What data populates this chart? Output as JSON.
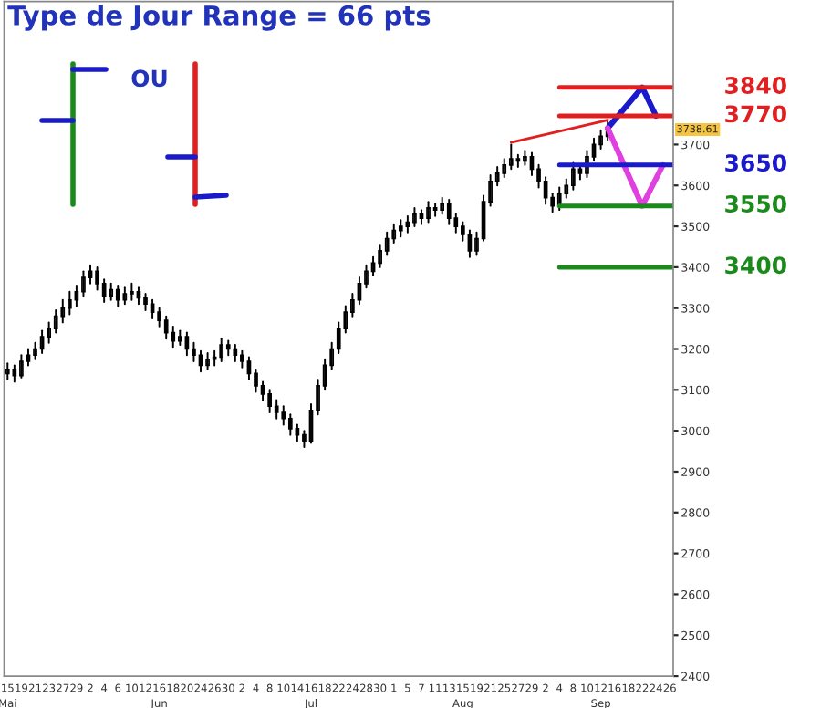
{
  "chart_data": {
    "type": "candlestick",
    "title": "Type de Jour Range = 66 pts",
    "annotations": [
      "OU",
      "3738.61"
    ],
    "categories": [
      "15\nMai",
      null,
      "19",
      null,
      "21",
      null,
      "23",
      null,
      "27",
      null,
      "29",
      null,
      "2",
      null,
      "4",
      null,
      "6",
      null,
      "10",
      null,
      "12",
      null,
      "16\nJun",
      null,
      "18",
      null,
      "20",
      null,
      "24",
      null,
      "26",
      null,
      "30",
      null,
      "2",
      null,
      "4",
      null,
      "8",
      null,
      "10",
      null,
      "14",
      null,
      "16\nJul",
      null,
      "18",
      null,
      "22",
      null,
      "24",
      null,
      "28",
      null,
      "30",
      null,
      "1",
      null,
      "5",
      null,
      "7",
      null,
      "11",
      null,
      "13",
      null,
      "15\nAug",
      null,
      "19",
      null,
      "21",
      null,
      "25",
      null,
      "27",
      null,
      "29",
      null,
      "2",
      null,
      "4",
      null,
      "8",
      null,
      "10",
      null,
      "12\nSep",
      null,
      "16",
      null,
      "18",
      null,
      "22",
      null,
      "24",
      null,
      "26"
    ],
    "color": "#000000",
    "ohlc": [
      [
        3140,
        3165,
        3125,
        3150
      ],
      [
        3150,
        3160,
        3120,
        3135
      ],
      [
        3135,
        3185,
        3130,
        3170
      ],
      [
        3170,
        3200,
        3160,
        3185
      ],
      [
        3185,
        3215,
        3175,
        3200
      ],
      [
        3200,
        3245,
        3190,
        3230
      ],
      [
        3230,
        3265,
        3215,
        3250
      ],
      [
        3250,
        3295,
        3240,
        3280
      ],
      [
        3280,
        3320,
        3265,
        3300
      ],
      [
        3300,
        3340,
        3285,
        3320
      ],
      [
        3320,
        3355,
        3305,
        3340
      ],
      [
        3340,
        3390,
        3330,
        3375
      ],
      [
        3375,
        3405,
        3360,
        3390
      ],
      [
        3390,
        3400,
        3345,
        3360
      ],
      [
        3360,
        3370,
        3315,
        3330
      ],
      [
        3330,
        3360,
        3320,
        3345
      ],
      [
        3345,
        3355,
        3305,
        3320
      ],
      [
        3320,
        3350,
        3310,
        3335
      ],
      [
        3335,
        3360,
        3320,
        3340
      ],
      [
        3340,
        3350,
        3310,
        3325
      ],
      [
        3325,
        3335,
        3295,
        3310
      ],
      [
        3310,
        3320,
        3275,
        3290
      ],
      [
        3290,
        3300,
        3255,
        3270
      ],
      [
        3270,
        3280,
        3225,
        3240
      ],
      [
        3240,
        3255,
        3205,
        3220
      ],
      [
        3220,
        3245,
        3210,
        3230
      ],
      [
        3230,
        3240,
        3185,
        3200
      ],
      [
        3200,
        3215,
        3170,
        3185
      ],
      [
        3185,
        3195,
        3145,
        3160
      ],
      [
        3160,
        3190,
        3150,
        3175
      ],
      [
        3175,
        3195,
        3160,
        3180
      ],
      [
        3180,
        3225,
        3170,
        3210
      ],
      [
        3210,
        3220,
        3185,
        3200
      ],
      [
        3200,
        3210,
        3170,
        3185
      ],
      [
        3185,
        3195,
        3155,
        3170
      ],
      [
        3170,
        3180,
        3125,
        3140
      ],
      [
        3140,
        3150,
        3095,
        3110
      ],
      [
        3110,
        3120,
        3075,
        3090
      ],
      [
        3090,
        3100,
        3045,
        3060
      ],
      [
        3060,
        3075,
        3030,
        3045
      ],
      [
        3045,
        3060,
        3015,
        3030
      ],
      [
        3030,
        3040,
        2990,
        3005
      ],
      [
        3005,
        3015,
        2975,
        2990
      ],
      [
        2990,
        3000,
        2960,
        2975
      ],
      [
        2975,
        3065,
        2970,
        3050
      ],
      [
        3050,
        3125,
        3040,
        3110
      ],
      [
        3110,
        3175,
        3100,
        3160
      ],
      [
        3160,
        3215,
        3150,
        3200
      ],
      [
        3200,
        3265,
        3190,
        3250
      ],
      [
        3250,
        3305,
        3240,
        3290
      ],
      [
        3290,
        3335,
        3280,
        3320
      ],
      [
        3320,
        3375,
        3310,
        3360
      ],
      [
        3360,
        3405,
        3350,
        3390
      ],
      [
        3390,
        3425,
        3380,
        3410
      ],
      [
        3410,
        3455,
        3400,
        3440
      ],
      [
        3440,
        3485,
        3430,
        3470
      ],
      [
        3470,
        3505,
        3460,
        3490
      ],
      [
        3490,
        3515,
        3475,
        3500
      ],
      [
        3500,
        3525,
        3485,
        3510
      ],
      [
        3510,
        3545,
        3500,
        3530
      ],
      [
        3530,
        3540,
        3505,
        3520
      ],
      [
        3520,
        3560,
        3510,
        3545
      ],
      [
        3545,
        3555,
        3525,
        3540
      ],
      [
        3540,
        3570,
        3530,
        3555
      ],
      [
        3555,
        3565,
        3505,
        3520
      ],
      [
        3520,
        3530,
        3485,
        3500
      ],
      [
        3500,
        3510,
        3465,
        3480
      ],
      [
        3480,
        3490,
        3425,
        3440
      ],
      [
        3440,
        3485,
        3430,
        3470
      ],
      [
        3470,
        3575,
        3465,
        3560
      ],
      [
        3560,
        3625,
        3550,
        3610
      ],
      [
        3610,
        3645,
        3600,
        3630
      ],
      [
        3630,
        3665,
        3620,
        3650
      ],
      [
        3650,
        3700,
        3640,
        3665
      ],
      [
        3665,
        3675,
        3645,
        3660
      ],
      [
        3660,
        3685,
        3650,
        3670
      ],
      [
        3670,
        3680,
        3625,
        3640
      ],
      [
        3640,
        3650,
        3595,
        3610
      ],
      [
        3610,
        3620,
        3555,
        3570
      ],
      [
        3570,
        3580,
        3535,
        3550
      ],
      [
        3550,
        3595,
        3540,
        3580
      ],
      [
        3580,
        3615,
        3570,
        3600
      ],
      [
        3600,
        3655,
        3590,
        3640
      ],
      [
        3640,
        3650,
        3615,
        3630
      ],
      [
        3630,
        3685,
        3620,
        3670
      ],
      [
        3670,
        3715,
        3660,
        3700
      ],
      [
        3700,
        3735,
        3690,
        3720
      ],
      [
        3720,
        3755,
        3710,
        3740
      ],
      null,
      null,
      null,
      null,
      null,
      null,
      null,
      null,
      null
    ],
    "series": [
      {
        "type": "line",
        "color": "#e02020",
        "values": [
          null,
          null,
          null,
          null,
          null,
          null,
          null,
          null,
          null,
          null,
          null,
          null,
          null,
          null,
          null,
          null,
          null,
          null,
          null,
          null,
          null,
          null,
          null,
          null,
          null,
          null,
          null,
          null,
          null,
          null,
          null,
          null,
          null,
          null,
          null,
          null,
          null,
          null,
          null,
          null,
          null,
          null,
          null,
          null,
          null,
          null,
          null,
          null,
          null,
          null,
          null,
          null,
          null,
          null,
          null,
          null,
          null,
          null,
          null,
          null,
          null,
          null,
          null,
          null,
          null,
          null,
          null,
          null,
          null,
          null,
          null,
          null,
          null,
          3705,
          null,
          null,
          null,
          null,
          null,
          null,
          null,
          null,
          null,
          null,
          null,
          null,
          null,
          3760,
          null,
          null,
          null,
          null,
          null,
          null,
          null,
          null,
          null
        ]
      },
      {
        "type": "line",
        "color": "#1a1acc",
        "values": [
          null,
          null,
          null,
          null,
          null,
          null,
          null,
          null,
          null,
          null,
          null,
          null,
          null,
          null,
          null,
          null,
          null,
          null,
          null,
          null,
          null,
          null,
          null,
          null,
          null,
          null,
          null,
          null,
          null,
          null,
          null,
          null,
          null,
          null,
          null,
          null,
          null,
          null,
          null,
          null,
          null,
          null,
          null,
          null,
          null,
          null,
          null,
          null,
          null,
          null,
          null,
          null,
          null,
          null,
          null,
          null,
          null,
          null,
          null,
          null,
          null,
          null,
          null,
          null,
          null,
          null,
          null,
          null,
          null,
          null,
          null,
          null,
          null,
          null,
          null,
          null,
          null,
          null,
          null,
          null,
          null,
          null,
          null,
          null,
          null,
          null,
          null,
          3740,
          null,
          null,
          null,
          null,
          3840,
          null,
          3770,
          null,
          null
        ]
      },
      {
        "type": "line",
        "color": "#e040e0",
        "values": [
          null,
          null,
          null,
          null,
          null,
          null,
          null,
          null,
          null,
          null,
          null,
          null,
          null,
          null,
          null,
          null,
          null,
          null,
          null,
          null,
          null,
          null,
          null,
          null,
          null,
          null,
          null,
          null,
          null,
          null,
          null,
          null,
          null,
          null,
          null,
          null,
          null,
          null,
          null,
          null,
          null,
          null,
          null,
          null,
          null,
          null,
          null,
          null,
          null,
          null,
          null,
          null,
          null,
          null,
          null,
          null,
          null,
          null,
          null,
          null,
          null,
          null,
          null,
          null,
          null,
          null,
          null,
          null,
          null,
          null,
          null,
          null,
          null,
          null,
          null,
          null,
          null,
          null,
          null,
          null,
          null,
          null,
          null,
          null,
          null,
          null,
          null,
          3740,
          null,
          null,
          null,
          null,
          3550,
          null,
          null,
          3650,
          null
        ]
      }
    ],
    "ref_lines": [
      {
        "axis": "y",
        "value": 3840,
        "label": "3840",
        "color": "#e02020"
      },
      {
        "axis": "y",
        "value": 3770,
        "label": "3770",
        "color": "#e02020"
      },
      {
        "axis": "y",
        "value": 3650,
        "label": "3650",
        "color": "#1a1acc"
      },
      {
        "axis": "y",
        "value": 3550,
        "label": "3550",
        "color": "#1a8a1a"
      },
      {
        "axis": "y",
        "value": 3400,
        "label": "3400",
        "color": "#1a8a1a"
      }
    ],
    "ylim": [
      2400,
      4050
    ],
    "yticks": [
      2400,
      2500,
      2600,
      2700,
      2800,
      2900,
      3000,
      3100,
      3200,
      3300,
      3400,
      3500,
      3600,
      3700
    ]
  }
}
